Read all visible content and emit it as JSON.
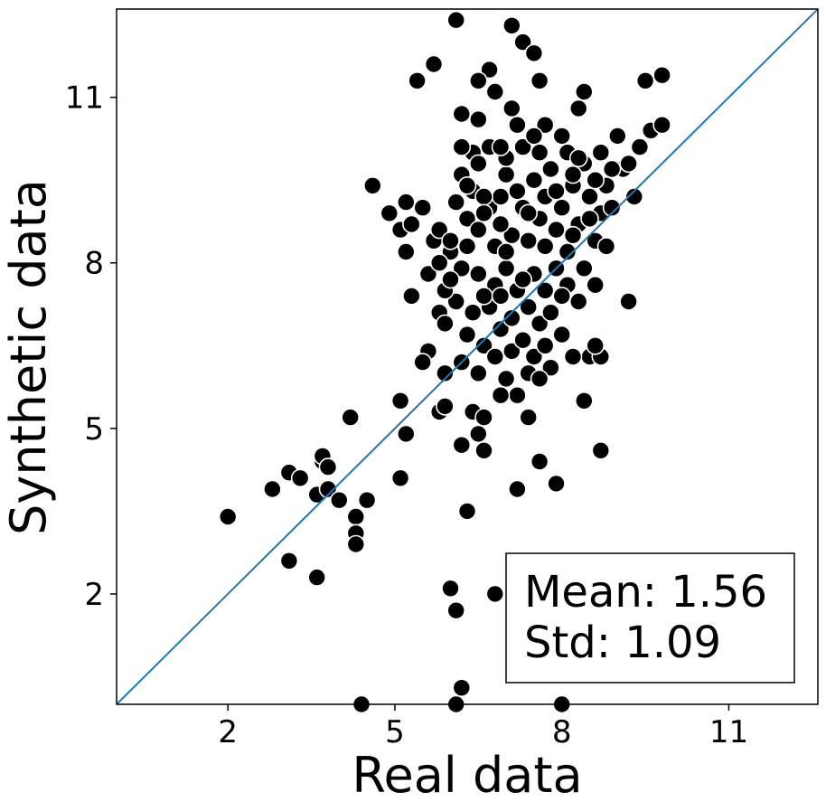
{
  "chart_data": {
    "type": "scatter",
    "title": "",
    "xlabel": "Real data",
    "ylabel": "Synthetic data",
    "xlim": [
      0,
      12.6
    ],
    "ylim": [
      0,
      12.6
    ],
    "xticks": [
      2,
      5,
      8,
      11
    ],
    "yticks": [
      2,
      5,
      8,
      11
    ],
    "xtick_labels": [
      "2",
      "5",
      "8",
      "11"
    ],
    "ytick_labels": [
      "2",
      "5",
      "8",
      "11"
    ],
    "identity_line": {
      "from": [
        0,
        0
      ],
      "to": [
        12.6,
        12.6
      ],
      "color": "#1f77b4"
    },
    "stats_box": {
      "mean_label": "Mean: 1.56",
      "std_label": "Std: 1.09",
      "location": "lower-right"
    },
    "point_color": "#000000",
    "point_edge_color": "#ffffff",
    "grid": false,
    "points": [
      [
        2.0,
        3.4
      ],
      [
        2.8,
        3.9
      ],
      [
        3.1,
        4.2
      ],
      [
        3.3,
        4.1
      ],
      [
        3.1,
        2.6
      ],
      [
        3.6,
        2.3
      ],
      [
        3.6,
        3.8
      ],
      [
        3.7,
        4.4
      ],
      [
        3.7,
        4.5
      ],
      [
        3.8,
        4.3
      ],
      [
        3.8,
        3.9
      ],
      [
        4.0,
        3.7
      ],
      [
        4.3,
        3.4
      ],
      [
        4.3,
        3.1
      ],
      [
        4.3,
        2.9
      ],
      [
        4.2,
        5.2
      ],
      [
        4.5,
        3.7
      ],
      [
        4.4,
        0.0
      ],
      [
        4.6,
        9.4
      ],
      [
        4.9,
        8.9
      ],
      [
        5.1,
        8.6
      ],
      [
        5.1,
        5.5
      ],
      [
        5.2,
        4.9
      ],
      [
        5.1,
        4.1
      ],
      [
        5.2,
        8.2
      ],
      [
        5.3,
        7.4
      ],
      [
        5.2,
        9.1
      ],
      [
        5.3,
        8.7
      ],
      [
        5.4,
        11.3
      ],
      [
        5.5,
        9.0
      ],
      [
        5.6,
        7.8
      ],
      [
        5.7,
        8.4
      ],
      [
        5.6,
        6.4
      ],
      [
        5.5,
        6.2
      ],
      [
        5.8,
        5.3
      ],
      [
        5.8,
        7.1
      ],
      [
        5.9,
        6.0
      ],
      [
        5.9,
        5.4
      ],
      [
        5.7,
        11.6
      ],
      [
        6.0,
        2.1
      ],
      [
        6.1,
        1.7
      ],
      [
        6.1,
        0.0
      ],
      [
        6.2,
        0.3
      ],
      [
        6.2,
        4.7
      ],
      [
        6.3,
        3.5
      ],
      [
        6.4,
        5.3
      ],
      [
        6.5,
        4.9
      ],
      [
        6.6,
        4.6
      ],
      [
        6.6,
        5.2
      ],
      [
        6.8,
        2.0
      ],
      [
        6.1,
        12.4
      ],
      [
        7.1,
        12.3
      ],
      [
        7.3,
        12.0
      ],
      [
        7.5,
        11.8
      ],
      [
        7.2,
        10.5
      ],
      [
        7.6,
        11.3
      ],
      [
        7.1,
        10.8
      ],
      [
        6.7,
        11.5
      ],
      [
        6.8,
        11.1
      ],
      [
        6.5,
        11.3
      ],
      [
        6.5,
        10.6
      ],
      [
        6.2,
        10.7
      ],
      [
        7.6,
        4.4
      ],
      [
        7.9,
        4.0
      ],
      [
        7.2,
        3.9
      ],
      [
        7.4,
        5.2
      ],
      [
        8.0,
        0.0
      ],
      [
        8.4,
        5.5
      ],
      [
        8.5,
        6.3
      ],
      [
        8.7,
        6.3
      ],
      [
        8.6,
        6.5
      ],
      [
        8.7,
        4.6
      ],
      [
        8.2,
        6.3
      ],
      [
        8.7,
        8.9
      ],
      [
        8.8,
        9.4
      ],
      [
        9.0,
        10.3
      ],
      [
        9.1,
        9.7
      ],
      [
        9.2,
        9.8
      ],
      [
        9.3,
        9.2
      ],
      [
        9.4,
        10.1
      ],
      [
        9.2,
        7.3
      ],
      [
        9.6,
        10.4
      ],
      [
        9.8,
        10.5
      ],
      [
        9.8,
        11.4
      ],
      [
        9.5,
        11.3
      ],
      [
        8.4,
        11.1
      ],
      [
        8.3,
        10.8
      ],
      [
        6.2,
        9.6
      ],
      [
        6.4,
        9.3
      ],
      [
        6.7,
        9.0
      ],
      [
        6.9,
        9.2
      ],
      [
        7.0,
        9.6
      ],
      [
        7.3,
        9.0
      ],
      [
        7.5,
        9.5
      ],
      [
        7.7,
        9.2
      ],
      [
        8.0,
        9.0
      ],
      [
        8.2,
        9.4
      ],
      [
        8.5,
        9.2
      ],
      [
        6.3,
        8.8
      ],
      [
        6.5,
        8.6
      ],
      [
        6.8,
        8.3
      ],
      [
        7.1,
        8.5
      ],
      [
        7.4,
        8.4
      ],
      [
        7.6,
        8.8
      ],
      [
        7.9,
        8.6
      ],
      [
        8.1,
        8.2
      ],
      [
        8.3,
        8.7
      ],
      [
        8.6,
        8.4
      ],
      [
        6.0,
        8.2
      ],
      [
        6.2,
        7.9
      ],
      [
        6.5,
        7.8
      ],
      [
        6.8,
        7.6
      ],
      [
        7.0,
        7.9
      ],
      [
        7.2,
        7.5
      ],
      [
        7.5,
        7.8
      ],
      [
        7.7,
        7.5
      ],
      [
        7.9,
        7.9
      ],
      [
        8.1,
        7.6
      ],
      [
        8.4,
        7.9
      ],
      [
        8.6,
        7.6
      ],
      [
        6.1,
        7.3
      ],
      [
        6.4,
        7.1
      ],
      [
        6.7,
        7.2
      ],
      [
        6.9,
        6.8
      ],
      [
        7.1,
        7.0
      ],
      [
        7.4,
        7.2
      ],
      [
        7.6,
        6.9
      ],
      [
        7.8,
        7.1
      ],
      [
        8.0,
        7.4
      ],
      [
        8.3,
        7.3
      ],
      [
        6.3,
        6.7
      ],
      [
        6.6,
        6.5
      ],
      [
        6.8,
        6.3
      ],
      [
        7.1,
        6.4
      ],
      [
        7.3,
        6.6
      ],
      [
        7.5,
        6.3
      ],
      [
        7.7,
        6.5
      ],
      [
        7.4,
        6.0
      ],
      [
        7.0,
        5.9
      ],
      [
        7.2,
        5.6
      ],
      [
        6.9,
        5.6
      ],
      [
        6.5,
        6.0
      ],
      [
        6.2,
        6.2
      ],
      [
        7.8,
        6.1
      ],
      [
        7.6,
        5.9
      ],
      [
        8.0,
        6.7
      ],
      [
        6.4,
        10.0
      ],
      [
        6.7,
        10.1
      ],
      [
        7.0,
        9.9
      ],
      [
        7.3,
        10.1
      ],
      [
        7.6,
        10.0
      ],
      [
        7.8,
        9.7
      ],
      [
        8.1,
        10.0
      ],
      [
        8.4,
        9.8
      ],
      [
        8.7,
        10.0
      ],
      [
        8.9,
        9.7
      ],
      [
        8.6,
        9.5
      ],
      [
        8.3,
        9.9
      ],
      [
        8.0,
        10.3
      ],
      [
        7.7,
        10.5
      ],
      [
        7.5,
        10.3
      ],
      [
        6.9,
        10.1
      ],
      [
        6.5,
        9.8
      ],
      [
        6.2,
        10.1
      ],
      [
        5.8,
        8.0
      ],
      [
        5.9,
        7.5
      ],
      [
        6.0,
        7.7
      ],
      [
        5.9,
        6.9
      ],
      [
        5.8,
        8.6
      ],
      [
        6.0,
        8.4
      ],
      [
        6.1,
        9.1
      ],
      [
        6.3,
        9.4
      ],
      [
        6.6,
        9.2
      ],
      [
        7.2,
        9.3
      ],
      [
        7.7,
        8.3
      ],
      [
        8.2,
        8.5
      ],
      [
        8.5,
        8.8
      ],
      [
        8.8,
        8.3
      ],
      [
        8.9,
        9.0
      ],
      [
        8.2,
        9.6
      ],
      [
        7.9,
        9.3
      ],
      [
        7.4,
        8.9
      ],
      [
        6.9,
        8.7
      ],
      [
        6.6,
        8.9
      ],
      [
        6.3,
        8.3
      ],
      [
        7.0,
        8.2
      ],
      [
        7.3,
        7.7
      ],
      [
        6.6,
        7.4
      ],
      [
        6.9,
        7.4
      ]
    ]
  }
}
